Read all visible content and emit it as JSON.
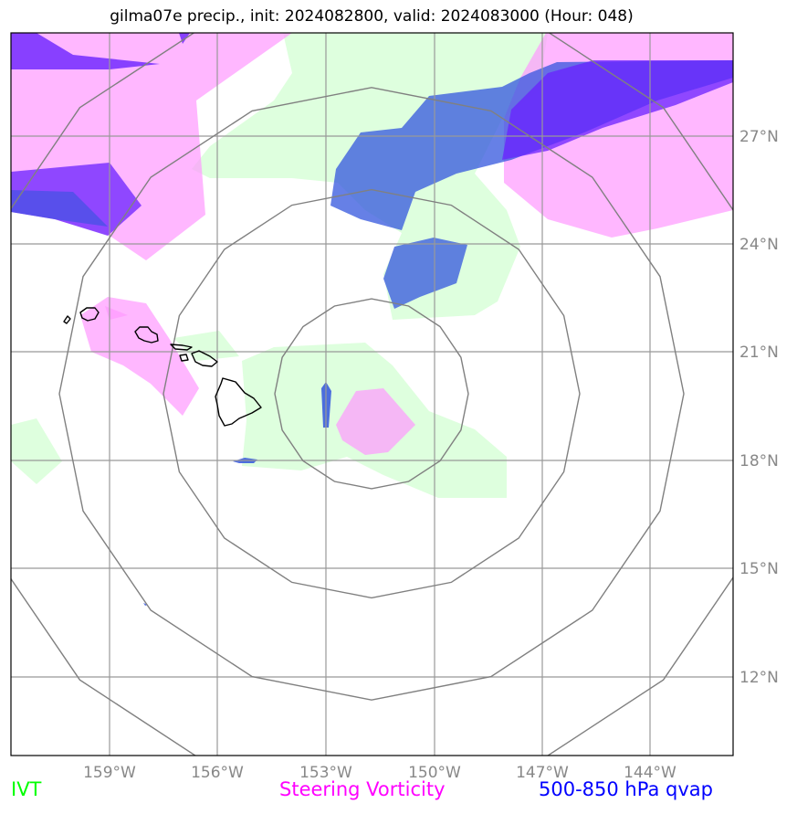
{
  "title": "gilma07e precip., init: 2024082800, valid: 2024083000 (Hour: 048)",
  "lon_labels": [
    "159°W",
    "156°W",
    "153°W",
    "150°W",
    "147°W",
    "144°W"
  ],
  "lat_labels": [
    "27°N",
    "24°N",
    "21°N",
    "18°N",
    "15°N",
    "12°N"
  ],
  "legend": {
    "ivt": {
      "label": "IVT",
      "color": "#00ff00"
    },
    "vorticity": {
      "label": "Steering Vorticity",
      "color": "#ff00ff"
    },
    "qvap": {
      "label": "500-850 hPa qvap",
      "color": "#0000ff"
    }
  },
  "colors": {
    "ivt_fill": "#ccffcc",
    "vorticity_fill": "#ff99ff",
    "qvap_fill": "#3355dd",
    "qvap_strong": "#6622ff",
    "grid": "#999999",
    "range_rings": "#808080",
    "coastline": "#000000",
    "tick_label": "#888888"
  }
}
